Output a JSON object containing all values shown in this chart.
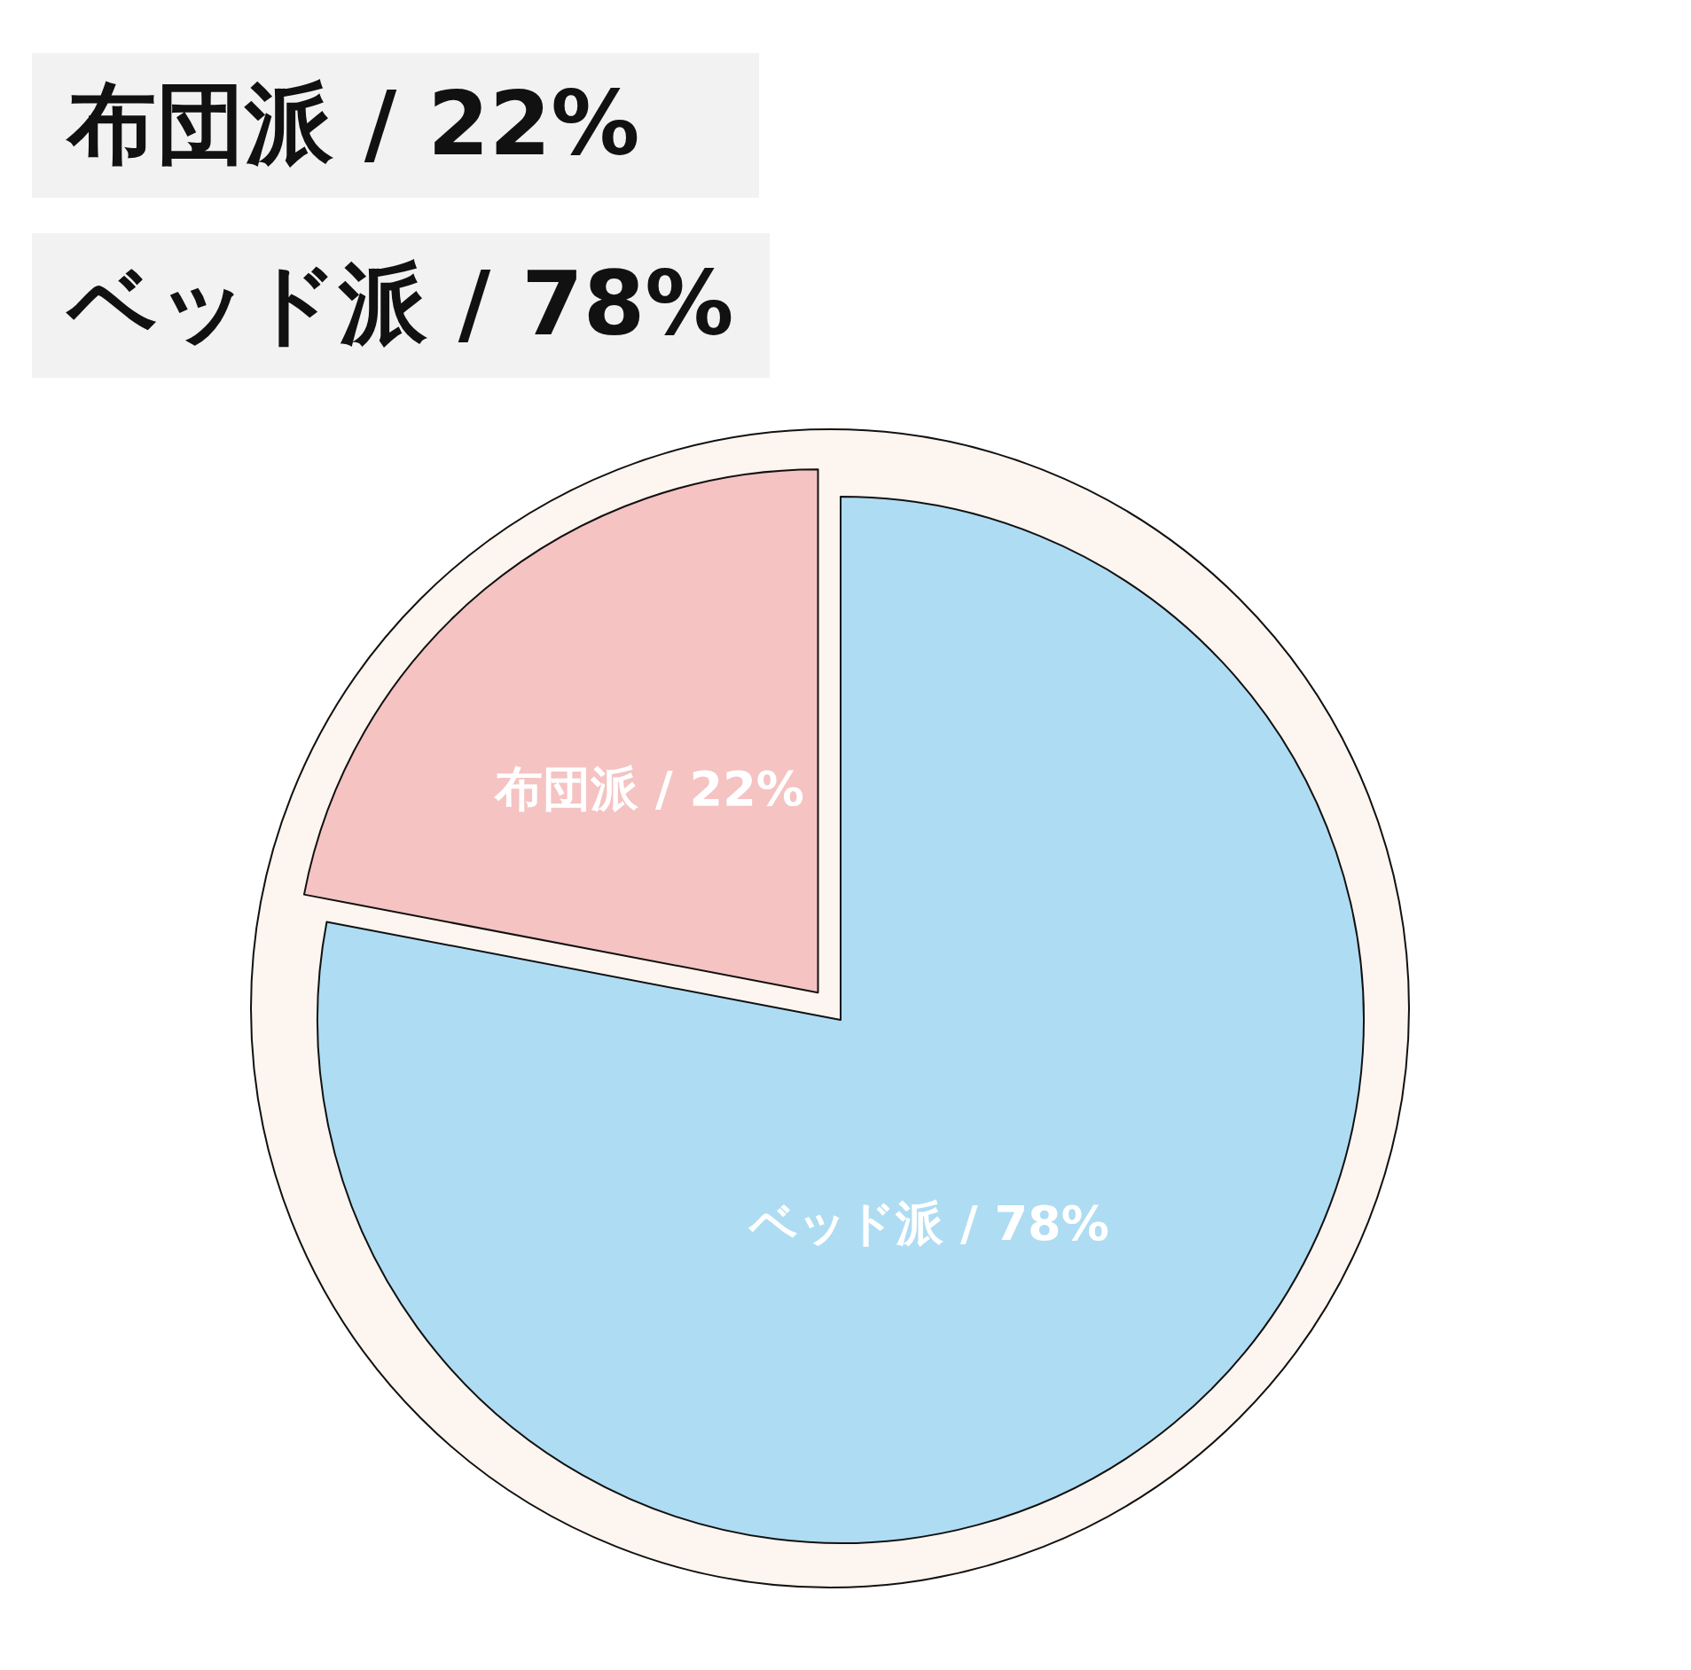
{
  "chart_data": {
    "type": "pie",
    "categories": [
      "布団派",
      "ベッド派"
    ],
    "values": [
      22,
      78
    ],
    "value_labels": [
      "/ 22%",
      "/ 78%"
    ],
    "colors": [
      "#f4c3c2",
      "#aedcf3"
    ],
    "annotations": [
      "布団派 / 22%",
      "ベッド派 / 78%"
    ]
  }
}
